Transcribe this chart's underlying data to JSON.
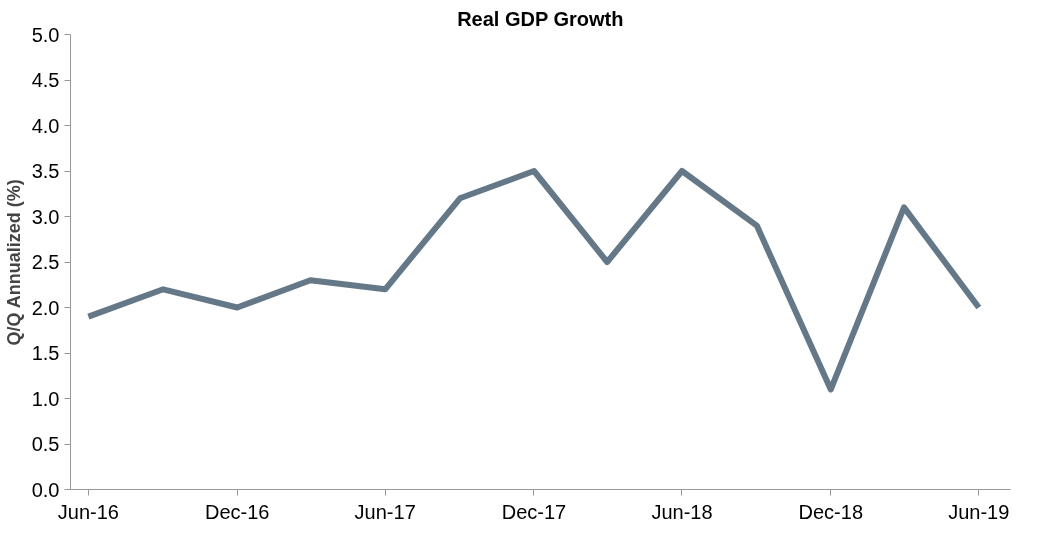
{
  "chart_data": {
    "type": "line",
    "title": "Real GDP Growth",
    "ylabel": "Q/Q Annualized (%)",
    "x": [
      "2016-06",
      "2016-09",
      "2016-12",
      "2017-03",
      "2017-06",
      "2017-09",
      "2017-12",
      "2018-03",
      "2018-06",
      "2018-09",
      "2018-12",
      "2019-03",
      "2019-06"
    ],
    "series": [
      {
        "color": "#647887",
        "values": [
          1.9,
          2.2,
          2.0,
          2.3,
          2.2,
          3.2,
          3.5,
          2.5,
          3.5,
          2.9,
          1.1,
          3.1,
          2.0
        ]
      }
    ],
    "xlim": [
      "2016-05-10",
      "2019-07-10"
    ],
    "xticks": [
      {
        "value": "2016-06",
        "label": "Jun-16"
      },
      {
        "value": "2016-12",
        "label": "Dec-16"
      },
      {
        "value": "2017-06",
        "label": "Jun-17"
      },
      {
        "value": "2017-12",
        "label": "Dec-17"
      },
      {
        "value": "2018-06",
        "label": "Jun-18"
      },
      {
        "value": "2018-12",
        "label": "Dec-18"
      },
      {
        "value": "2019-06",
        "label": "Jun-19"
      }
    ],
    "ylim": [
      0,
      5
    ],
    "yticks": [
      {
        "value": 0,
        "label": "0.0"
      },
      {
        "value": 0.5,
        "label": "0.5"
      },
      {
        "value": 1,
        "label": "1.0"
      },
      {
        "value": 1.5,
        "label": "1.5"
      },
      {
        "value": 2,
        "label": "2.0"
      },
      {
        "value": 2.5,
        "label": "2.5"
      },
      {
        "value": 3,
        "label": "3.0"
      },
      {
        "value": 3.5,
        "label": "3.5"
      },
      {
        "value": 4,
        "label": "4.0"
      },
      {
        "value": 4.5,
        "label": "4.5"
      },
      {
        "value": 5,
        "label": "5.0"
      }
    ],
    "grid": false,
    "line_style": "solid",
    "marker": "none"
  }
}
